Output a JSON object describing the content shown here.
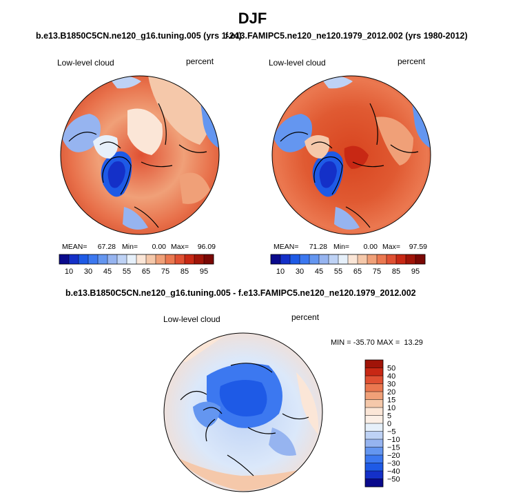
{
  "title": "DJF",
  "chart_data": [
    {
      "type": "heatmap",
      "projection": "north polar stereographic",
      "title": "b.e13.B1850C5CN.ne120_g16.tuning.005 (yrs 1-24)",
      "variable": "Low-level cloud",
      "units": "percent",
      "stats": {
        "mean_label": "MEAN=",
        "mean": "67.28",
        "min_label": "Min=",
        "min": "0.00",
        "max_label": "Max=",
        "max": "96.09"
      },
      "colorbar": {
        "orientation": "horizontal",
        "tick_labels": [
          "10",
          "30",
          "45",
          "55",
          "65",
          "75",
          "85",
          "95"
        ],
        "colors": [
          "#0a0a8c",
          "#1430c8",
          "#1e5ae6",
          "#3c78f0",
          "#6496f0",
          "#96b4f0",
          "#bed2f5",
          "#e6f0fa",
          "#fbe6d7",
          "#f5c8aa",
          "#f0a078",
          "#eb7850",
          "#e05032",
          "#c82814",
          "#a01408",
          "#7a0804"
        ]
      }
    },
    {
      "type": "heatmap",
      "projection": "north polar stereographic",
      "title": "f.e13.FAMIPC5.ne120_ne120.1979_2012.002 (yrs 1980-2012)",
      "variable": "Low-level cloud",
      "units": "percent",
      "stats": {
        "mean_label": "MEAN=",
        "mean": "71.28",
        "min_label": "Min=",
        "min": "0.00",
        "max_label": "Max=",
        "max": "97.59"
      },
      "colorbar": {
        "orientation": "horizontal",
        "tick_labels": [
          "10",
          "30",
          "45",
          "55",
          "65",
          "75",
          "85",
          "95"
        ],
        "colors": [
          "#0a0a8c",
          "#1430c8",
          "#1e5ae6",
          "#3c78f0",
          "#6496f0",
          "#96b4f0",
          "#bed2f5",
          "#e6f0fa",
          "#fbe6d7",
          "#f5c8aa",
          "#f0a078",
          "#eb7850",
          "#e05032",
          "#c82814",
          "#a01408",
          "#7a0804"
        ]
      }
    },
    {
      "type": "heatmap",
      "projection": "north polar stereographic",
      "title": "b.e13.B1850C5CN.ne120_g16.tuning.005 - f.e13.FAMIPC5.ne120_ne120.1979_2012.002",
      "variable": "Low-level cloud",
      "units": "percent",
      "stats_text": "MIN = -35.70 MAX =  13.29",
      "colorbar": {
        "orientation": "vertical",
        "tick_labels": [
          "50",
          "40",
          "30",
          "20",
          "15",
          "10",
          "5",
          "0",
          "−5",
          "−10",
          "−15",
          "−20",
          "−30",
          "−40",
          "−50"
        ],
        "colors": [
          "#a01408",
          "#c82814",
          "#e05032",
          "#eb7850",
          "#f0a078",
          "#f5c8aa",
          "#fbe6d7",
          "#fbefe6",
          "#e6f0fa",
          "#bed2f5",
          "#96b4f0",
          "#6496f0",
          "#3c78f0",
          "#1e5ae6",
          "#1430c8",
          "#0a0a8c"
        ]
      }
    }
  ]
}
